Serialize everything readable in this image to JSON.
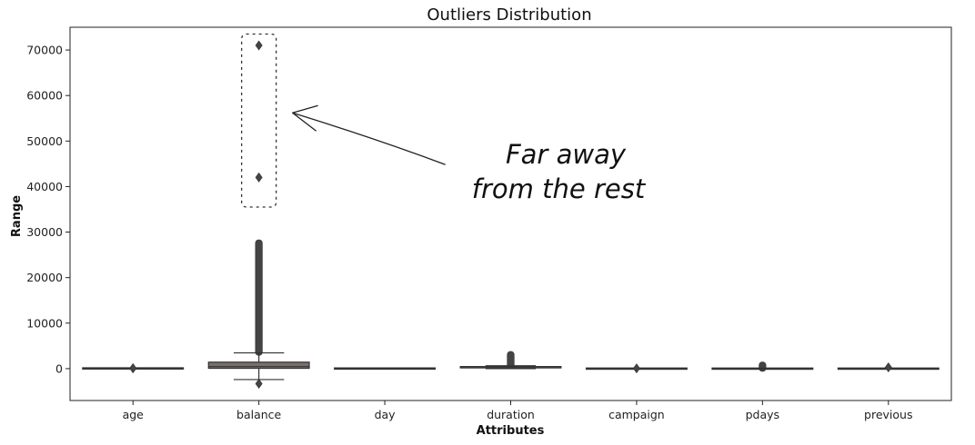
{
  "chart_data": {
    "type": "box",
    "title": "Outliers Distribution",
    "xlabel": "Attributes",
    "ylabel": "Range",
    "categories": [
      "age",
      "balance",
      "day",
      "duration",
      "campaign",
      "pdays",
      "previous"
    ],
    "ylim": [
      -7000,
      75000
    ],
    "yticks": [
      0,
      10000,
      20000,
      30000,
      40000,
      50000,
      60000,
      70000
    ],
    "grid": false,
    "box_color": "#7a6e6c",
    "boxes": [
      {
        "name": "age",
        "q1": 33,
        "median": 39,
        "q3": 48,
        "whisker_low": 18,
        "whisker_high": 70,
        "outliers": [
          80,
          90
        ]
      },
      {
        "name": "balance",
        "q1": 72,
        "median": 448,
        "q3": 1428,
        "whisker_low": -2400,
        "whisker_high": 3462,
        "outlier_range": [
          3500,
          27700
        ],
        "outliers": [
          -3300,
          42000,
          71000
        ]
      },
      {
        "name": "day",
        "q1": 8,
        "median": 16,
        "q3": 21,
        "whisker_low": 1,
        "whisker_high": 31,
        "outliers": []
      },
      {
        "name": "duration",
        "q1": 103,
        "median": 180,
        "q3": 319,
        "whisker_low": 0,
        "whisker_high": 643,
        "outlier_range": [
          650,
          3200
        ],
        "outliers": []
      },
      {
        "name": "campaign",
        "q1": 1,
        "median": 2,
        "q3": 3,
        "whisker_low": 1,
        "whisker_high": 6,
        "outliers": [
          60
        ]
      },
      {
        "name": "pdays",
        "q1": -1,
        "median": -1,
        "q3": -1,
        "whisker_low": -1,
        "whisker_high": -1,
        "outlier_range": [
          1,
          870
        ],
        "outliers": []
      },
      {
        "name": "previous",
        "q1": 0,
        "median": 0,
        "q3": 0,
        "whisker_low": 0,
        "whisker_high": 0,
        "outliers": [
          275
        ]
      }
    ],
    "annotation": {
      "lines": [
        "Far away",
        "from the rest"
      ],
      "highlight_category": "balance",
      "highlight_range": [
        35500,
        73500
      ]
    }
  }
}
